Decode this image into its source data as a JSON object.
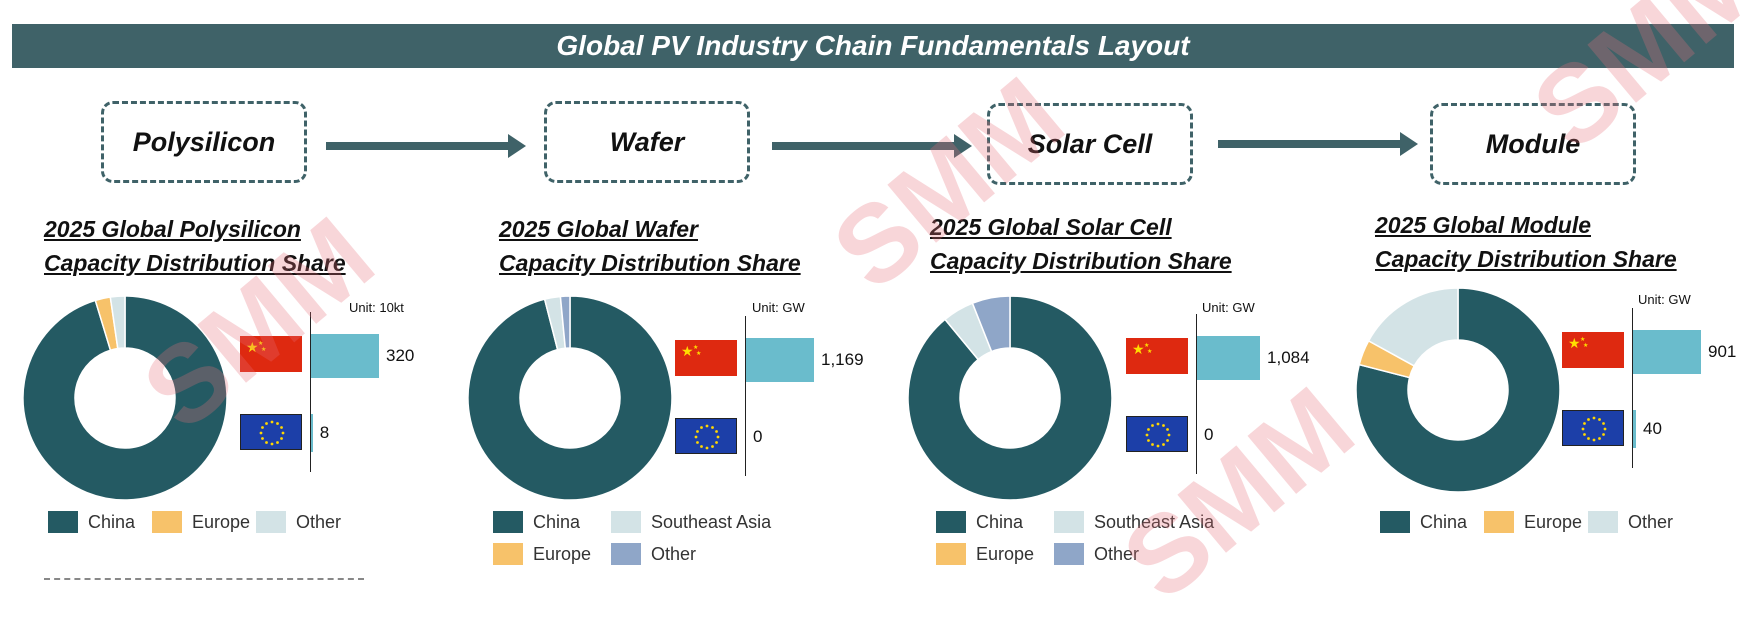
{
  "title": "Global PV Industry Chain Fundamentals Layout",
  "stages": [
    "Polysilicon",
    "Wafer",
    "Solar Cell",
    "Module"
  ],
  "colors": {
    "China": "#245a63",
    "Europe": "#f7c26a",
    "Other": "#d3e3e6",
    "Southeast Asia": "#d3e3e6",
    "Other (purple-grey)": "#8fa6c8",
    "bar": "#6abccc",
    "header": "#3f6268"
  },
  "watermark": "SMM",
  "chart_data": [
    {
      "type": "pie",
      "title_line1": "2025 Global Polysilicon",
      "title_line2": "Capacity Distribution Share",
      "unit": "Unit: 10kt",
      "slices": [
        {
          "name": "China",
          "value": 95.3
        },
        {
          "name": "Europe",
          "value": 2.4
        },
        {
          "name": "Other",
          "value": 2.3
        }
      ],
      "legend": [
        "China",
        "Europe",
        "Other"
      ],
      "bars": [
        {
          "region": "China",
          "value": 320,
          "label": "320"
        },
        {
          "region": "Europe",
          "value": 8,
          "label": "8"
        }
      ],
      "bar_max": 320
    },
    {
      "type": "pie",
      "title_line1": "2025 Global Wafer",
      "title_line2": "Capacity Distribution Share",
      "unit": "Unit: GW",
      "slices": [
        {
          "name": "China",
          "value": 96.0
        },
        {
          "name": "Southeast Asia",
          "value": 2.5
        },
        {
          "name": "Europe",
          "value": 0
        },
        {
          "name": "Other",
          "value": 1.5
        }
      ],
      "legend": [
        "China",
        "Southeast Asia",
        "Europe",
        "Other"
      ],
      "bars": [
        {
          "region": "China",
          "value": 1169,
          "label": "1,169"
        },
        {
          "region": "Europe",
          "value": 0,
          "label": "0"
        }
      ],
      "bar_max": 1169
    },
    {
      "type": "pie",
      "title_line1": "2025 Global Solar Cell",
      "title_line2": "Capacity Distribution Share",
      "unit": "Unit: GW",
      "slices": [
        {
          "name": "China",
          "value": 89.0
        },
        {
          "name": "Southeast Asia",
          "value": 5.0
        },
        {
          "name": "Europe",
          "value": 0
        },
        {
          "name": "Other",
          "value": 6.0
        }
      ],
      "legend": [
        "China",
        "Southeast Asia",
        "Europe",
        "Other"
      ],
      "bars": [
        {
          "region": "China",
          "value": 1084,
          "label": "1,084"
        },
        {
          "region": "Europe",
          "value": 0,
          "label": "0"
        }
      ],
      "bar_max": 1169
    },
    {
      "type": "pie",
      "title_line1": "2025 Global Module",
      "title_line2": "Capacity Distribution Share",
      "unit": "Unit: GW",
      "slices": [
        {
          "name": "China",
          "value": 79.0
        },
        {
          "name": "Europe",
          "value": 4.0
        },
        {
          "name": "Other",
          "value": 17.0
        }
      ],
      "legend": [
        "China",
        "Europe",
        "Other"
      ],
      "bars": [
        {
          "region": "China",
          "value": 901,
          "label": "901"
        },
        {
          "region": "Europe",
          "value": 40,
          "label": "40"
        }
      ],
      "bar_max": 901
    }
  ]
}
